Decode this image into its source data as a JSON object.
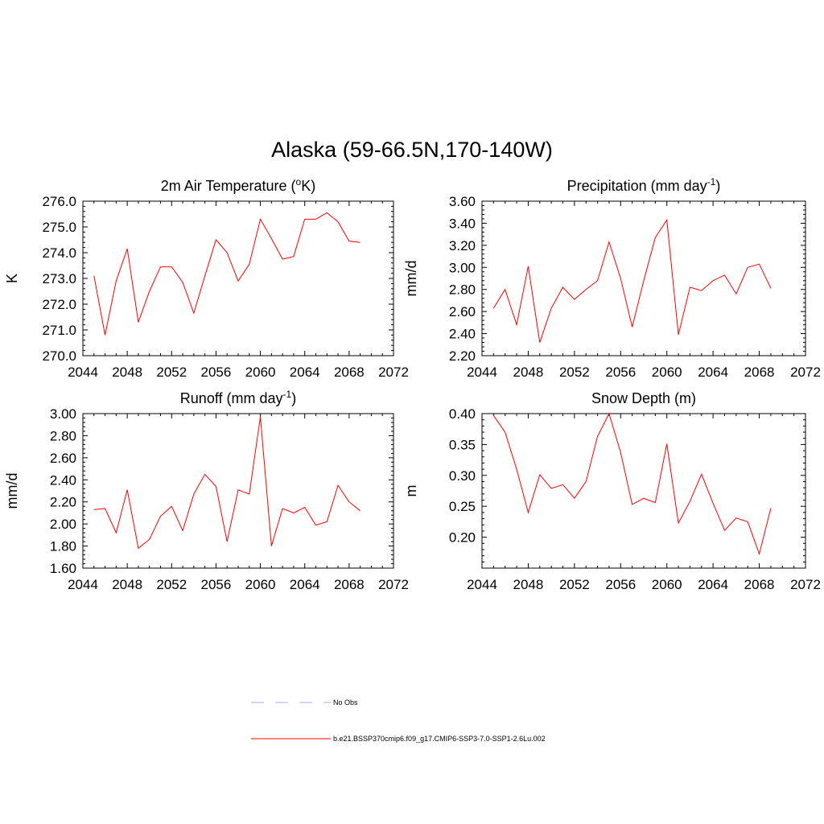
{
  "figure": {
    "title": "Alaska (59-66.5N,170-140W)"
  },
  "chart_data": [
    {
      "type": "line",
      "title": "2m Air Temperature (oK)",
      "title_parts": [
        [
          "2m Air Temperature (",
          ""
        ],
        [
          "o",
          "sup"
        ],
        [
          "K)",
          ""
        ]
      ],
      "ylabel": "K",
      "xlim": [
        2044,
        2072
      ],
      "ylim": [
        270.0,
        276.0
      ],
      "x_ticks": [
        2044,
        2048,
        2052,
        2056,
        2060,
        2064,
        2068,
        2072
      ],
      "y_ticks": [
        270.0,
        271.0,
        272.0,
        273.0,
        274.0,
        275.0,
        276.0
      ],
      "y_tick_decimals": 1,
      "x": [
        2045,
        2046,
        2047,
        2048,
        2049,
        2050,
        2051,
        2052,
        2053,
        2054,
        2055,
        2056,
        2057,
        2058,
        2059,
        2060,
        2061,
        2062,
        2063,
        2064,
        2065,
        2066,
        2067,
        2068,
        2069
      ],
      "series": [
        {
          "color": "#ff0000",
          "values": [
            273.1,
            270.8,
            272.9,
            274.15,
            271.3,
            272.5,
            273.45,
            273.45,
            272.85,
            271.65,
            273.1,
            274.5,
            274.0,
            272.9,
            273.55,
            275.3,
            274.55,
            273.75,
            273.85,
            275.3,
            275.3,
            275.55,
            275.2,
            274.45,
            274.4
          ]
        }
      ]
    },
    {
      "type": "line",
      "title": "Precipitation (mm day-1)",
      "title_parts": [
        [
          "Precipitation (mm day",
          ""
        ],
        [
          "-1",
          "sup"
        ],
        [
          ")",
          ""
        ]
      ],
      "ylabel": "mm/d",
      "xlim": [
        2044,
        2072
      ],
      "ylim": [
        2.2,
        3.6
      ],
      "x_ticks": [
        2044,
        2048,
        2052,
        2056,
        2060,
        2064,
        2068,
        2072
      ],
      "y_ticks": [
        2.2,
        2.4,
        2.6,
        2.8,
        3.0,
        3.2,
        3.4,
        3.6
      ],
      "y_tick_decimals": 2,
      "x": [
        2045,
        2046,
        2047,
        2048,
        2049,
        2050,
        2051,
        2052,
        2053,
        2054,
        2055,
        2056,
        2057,
        2058,
        2059,
        2060,
        2061,
        2062,
        2063,
        2064,
        2065,
        2066,
        2067,
        2068,
        2069
      ],
      "series": [
        {
          "color": "#ff0000",
          "values": [
            2.63,
            2.8,
            2.48,
            3.01,
            2.32,
            2.63,
            2.82,
            2.71,
            2.8,
            2.88,
            3.23,
            2.9,
            2.46,
            2.88,
            3.27,
            3.43,
            2.39,
            2.82,
            2.79,
            2.88,
            2.93,
            2.76,
            3.0,
            3.03,
            2.81
          ]
        }
      ]
    },
    {
      "type": "line",
      "title": "Runoff (mm day-1)",
      "title_parts": [
        [
          "Runoff (mm day",
          ""
        ],
        [
          "-1",
          "sup"
        ],
        [
          ")",
          ""
        ]
      ],
      "ylabel": "mm/d",
      "xlim": [
        2044,
        2072
      ],
      "ylim": [
        1.6,
        3.0
      ],
      "x_ticks": [
        2044,
        2048,
        2052,
        2056,
        2060,
        2064,
        2068,
        2072
      ],
      "y_ticks": [
        1.6,
        1.8,
        2.0,
        2.2,
        2.4,
        2.6,
        2.8,
        3.0
      ],
      "y_tick_decimals": 2,
      "x": [
        2045,
        2046,
        2047,
        2048,
        2049,
        2050,
        2051,
        2052,
        2053,
        2054,
        2055,
        2056,
        2057,
        2058,
        2059,
        2060,
        2061,
        2062,
        2063,
        2064,
        2065,
        2066,
        2067,
        2068,
        2069
      ],
      "series": [
        {
          "color": "#ff0000",
          "values": [
            2.13,
            2.14,
            1.92,
            2.31,
            1.78,
            1.86,
            2.07,
            2.16,
            1.94,
            2.27,
            2.45,
            2.34,
            1.84,
            2.31,
            2.27,
            2.97,
            1.8,
            2.14,
            2.1,
            2.15,
            1.99,
            2.02,
            2.35,
            2.2,
            2.12
          ]
        }
      ]
    },
    {
      "type": "line",
      "title": "Snow Depth (m)",
      "title_parts": [
        [
          "Snow Depth (m)",
          ""
        ]
      ],
      "ylabel": "m",
      "xlim": [
        2044,
        2072
      ],
      "ylim": [
        0.15,
        0.4
      ],
      "x_ticks": [
        2044,
        2048,
        2052,
        2056,
        2060,
        2064,
        2068,
        2072
      ],
      "y_ticks": [
        0.2,
        0.25,
        0.3,
        0.35,
        0.4
      ],
      "y_tick_decimals": 2,
      "x": [
        2045,
        2046,
        2047,
        2048,
        2049,
        2050,
        2051,
        2052,
        2053,
        2054,
        2055,
        2056,
        2057,
        2058,
        2059,
        2060,
        2061,
        2062,
        2063,
        2064,
        2065,
        2066,
        2067,
        2068,
        2069
      ],
      "series": [
        {
          "color": "#ff0000",
          "values": [
            0.397,
            0.37,
            0.31,
            0.24,
            0.301,
            0.279,
            0.285,
            0.263,
            0.29,
            0.363,
            0.4,
            0.337,
            0.253,
            0.263,
            0.256,
            0.351,
            0.223,
            0.258,
            0.302,
            0.255,
            0.211,
            0.231,
            0.225,
            0.173,
            0.247
          ]
        }
      ]
    }
  ],
  "legend": {
    "items": [
      {
        "label": "No Obs",
        "style": "dashed",
        "color": "#aaaaee"
      },
      {
        "label": "b.e21.BSSP370cmip6.f09_g17.CMIP6-SSP3-7.0-SSP1-2.6Lu.002",
        "style": "solid",
        "color": "#ff0000"
      }
    ]
  }
}
